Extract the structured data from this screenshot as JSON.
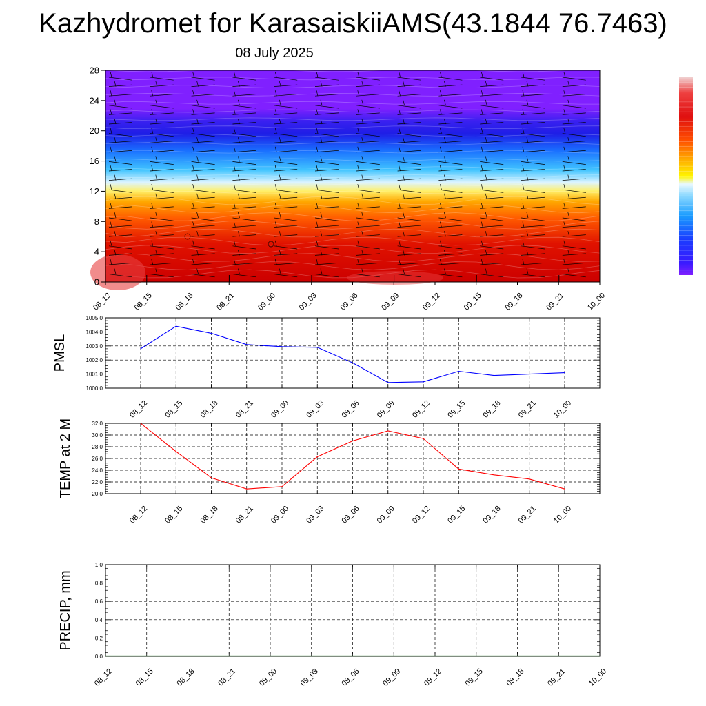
{
  "header": {
    "title": "Kazhydromet for KarasaiskiiAMS(43.1844 76.7463)",
    "subtitle": "08 July 2025"
  },
  "chart_data": [
    {
      "type": "heatmap",
      "name_key": "vertical-section",
      "title": "",
      "xlabel": "",
      "ylabel": "",
      "x": [
        "08_12",
        "08_15",
        "08_18",
        "08_21",
        "09_00",
        "09_03",
        "09_06",
        "09_09",
        "09_12",
        "09_15",
        "09_18",
        "09_21",
        "10_00"
      ],
      "yticks": [
        0,
        4,
        8,
        12,
        16,
        20,
        24,
        28
      ],
      "ylim": [
        0,
        28
      ],
      "grid": false,
      "colorbar": "right",
      "colors": [
        "#e8e8e8",
        "#cc0000",
        "#e51400",
        "#ff6a00",
        "#ffd000",
        "#fffa80",
        "#c8f0ff",
        "#20b8ff",
        "#1850ff",
        "#2020f0",
        "#8020ff"
      ],
      "overlay": "wind barbs"
    },
    {
      "type": "line",
      "ylabel": "PMSL",
      "x": [
        "08_12",
        "08_15",
        "08_18",
        "08_21",
        "09_00",
        "09_03",
        "09_06",
        "09_09",
        "09_12",
        "09_15",
        "09_18",
        "09_21",
        "10_00"
      ],
      "yticks": [
        "1000.0",
        "1001.0",
        "1002.0",
        "1003.0",
        "1004.0",
        "1005.0"
      ],
      "ylim": [
        1000,
        1005
      ],
      "grid": true,
      "series": [
        {
          "color": "#0000ff",
          "values": [
            1002.8,
            1004.4,
            1003.9,
            1003.1,
            1002.95,
            1002.9,
            1001.8,
            1000.4,
            1000.45,
            1001.2,
            1000.9,
            1001.0,
            1001.1
          ]
        }
      ]
    },
    {
      "type": "line",
      "ylabel": "TEMP at 2 M",
      "x": [
        "08_12",
        "08_15",
        "08_18",
        "08_21",
        "09_00",
        "09_03",
        "09_06",
        "09_09",
        "09_12",
        "09_15",
        "09_18",
        "09_21",
        "10_00"
      ],
      "yticks": [
        "20.0",
        "22.0",
        "24.0",
        "26.0",
        "28.0",
        "30.0",
        "32.0"
      ],
      "ylim": [
        20,
        32
      ],
      "grid": true,
      "series": [
        {
          "color": "#ff0000",
          "values": [
            32.0,
            27.2,
            22.7,
            20.8,
            21.2,
            26.3,
            29.0,
            30.7,
            29.4,
            24.2,
            23.2,
            22.5,
            20.8
          ]
        }
      ]
    },
    {
      "type": "bar",
      "ylabel": "PRECIP, mm",
      "x": [
        "08_12",
        "08_15",
        "08_18",
        "08_21",
        "09_00",
        "09_03",
        "09_06",
        "09_09",
        "09_12",
        "09_15",
        "09_18",
        "09_21",
        "10_00"
      ],
      "yticks": [
        "0.0",
        "0.2",
        "0.4",
        "0.6",
        "0.8",
        "1.0"
      ],
      "ylim": [
        0,
        1
      ],
      "grid": true,
      "values": [
        0,
        0,
        0,
        0,
        0,
        0,
        0,
        0,
        0,
        0,
        0,
        0,
        0
      ],
      "color": "#006400"
    }
  ]
}
